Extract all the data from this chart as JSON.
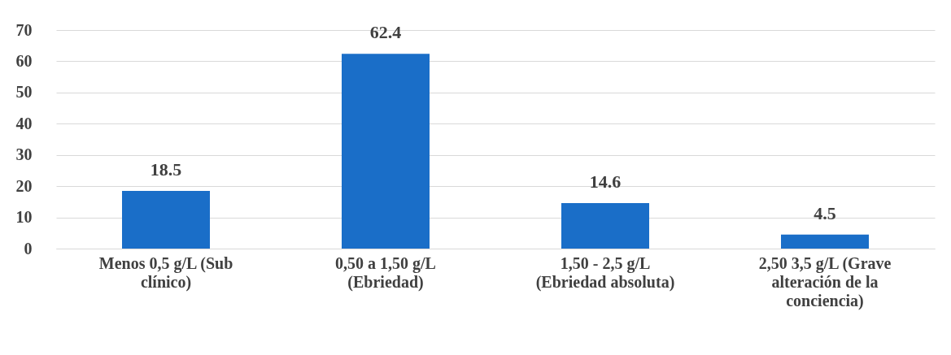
{
  "chart_data": {
    "type": "bar",
    "categories": [
      "Menos 0,5 g/L (Sub clínico)",
      "0,50 a 1,50 g/L (Ebriedad)",
      "1,50 - 2,5 g/L (Ebriedad absoluta)",
      "2,50  3,5 g/L  (Grave alteración de la conciencia)"
    ],
    "values": [
      18.5,
      62.4,
      14.6,
      4.5
    ],
    "color": "#1a6ec8",
    "ylim": [
      0,
      70
    ],
    "yticks": [
      0,
      10,
      20,
      30,
      40,
      50,
      60,
      70
    ],
    "grid": "y",
    "data_labels": true
  }
}
